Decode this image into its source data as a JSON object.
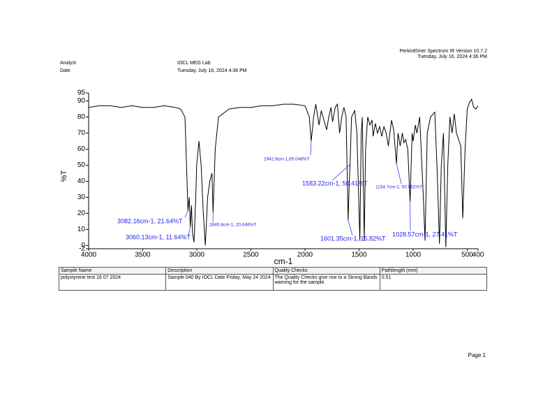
{
  "header": {
    "software": "PerkinElmer Spectrum IR Version 10.7.2",
    "printed": "Tuesday, July 16, 2024 4:36 PM",
    "fields": [
      {
        "label": "Analyst",
        "value": "IOCL MEG Lab"
      },
      {
        "label": "Date",
        "value": "Tuesday, July 16, 2024 4:36 PM"
      }
    ]
  },
  "chart_data": {
    "type": "line",
    "x_label": "cm-1",
    "y_label": "%T",
    "color": "#000000",
    "annotation_color": "#2222ee",
    "xlim": [
      4000,
      400
    ],
    "ylim": [
      -2,
      95
    ],
    "xticks": [
      4000,
      3500,
      3000,
      2500,
      2000,
      1500,
      1000,
      500,
      400
    ],
    "yticks": [
      -2,
      0,
      10,
      20,
      30,
      40,
      50,
      60,
      70,
      80,
      90,
      95
    ],
    "x": [
      4000,
      3900,
      3800,
      3700,
      3600,
      3500,
      3400,
      3300,
      3200,
      3150,
      3110,
      3100,
      3090,
      3082.16,
      3070,
      3060.13,
      3050,
      3040,
      3026,
      3010,
      3001,
      2980,
      2960,
      2940,
      2921,
      2900,
      2880,
      2860,
      2849.8,
      2830,
      2800,
      2700,
      2600,
      2500,
      2400,
      2300,
      2200,
      2100,
      2000,
      1960,
      1942.8,
      1920,
      1900,
      1870,
      1850,
      1800,
      1780,
      1760,
      1745,
      1720,
      1700,
      1680,
      1660,
      1640,
      1620,
      1601.35,
      1590,
      1583.22,
      1570,
      1540,
      1520,
      1493,
      1480,
      1470,
      1452,
      1440,
      1420,
      1400,
      1380,
      1370,
      1350,
      1330,
      1310,
      1290,
      1270,
      1250,
      1230,
      1200,
      1180,
      1154.7,
      1140,
      1120,
      1100,
      1085,
      1070,
      1050,
      1028.57,
      1010,
      1000,
      980,
      965,
      940,
      906,
      890,
      870,
      840,
      800,
      780,
      757,
      740,
      720,
      698,
      680,
      660,
      640,
      620,
      600,
      560,
      541,
      520,
      500,
      480,
      460,
      440,
      420,
      400
    ],
    "values": [
      86,
      87,
      87,
      86,
      87,
      86,
      86,
      87,
      86,
      85,
      80,
      60,
      40,
      21.64,
      30,
      11.64,
      25,
      8,
      2,
      30,
      50,
      65,
      50,
      20,
      0,
      30,
      40,
      45,
      20.646,
      60,
      80,
      85,
      86,
      86,
      87,
      87,
      88,
      88,
      87,
      80,
      65.048,
      80,
      88,
      75,
      84,
      72,
      80,
      86,
      77,
      86,
      88,
      70,
      80,
      86,
      80,
      15.82,
      40,
      50.41,
      80,
      84,
      70,
      3,
      70,
      80,
      3,
      60,
      80,
      75,
      78,
      68,
      76,
      70,
      74,
      68,
      74,
      70,
      62,
      78,
      72,
      50.962,
      70,
      62,
      70,
      64,
      66,
      60,
      27.41,
      70,
      65,
      75,
      70,
      80,
      30,
      3,
      70,
      80,
      83,
      50,
      1,
      50,
      70,
      -1,
      50,
      80,
      70,
      82,
      70,
      62,
      17,
      60,
      85,
      89,
      91,
      86,
      85,
      87
    ],
    "annotations": [
      {
        "label": "3082.16cm-1, 21.64%T",
        "x": 3082.16,
        "y": 21.64
      },
      {
        "label": "3060.13cm-1, 11.64%T",
        "x": 3060.13,
        "y": 11.64
      },
      {
        "label": "2849.8cm-1, 20.646%T",
        "x": 2849.8,
        "y": 20.646
      },
      {
        "label": "1942.8cm-1,65.048%T",
        "x": 1942.8,
        "y": 65.048
      },
      {
        "label": "1583.22cm-1, 50.41%T",
        "x": 1583.22,
        "y": 50.41
      },
      {
        "label": "1601.35cm-1, 15.82%T",
        "x": 1601.35,
        "y": 15.82
      },
      {
        "label": "1154.7cm-1, 50.962%T",
        "x": 1154.7,
        "y": 50.962
      },
      {
        "label": "1028.57cm-1, 27.41%T",
        "x": 1028.57,
        "y": 27.41
      }
    ]
  },
  "table": {
    "columns": [
      "Sample Name",
      "Description",
      "Quality Checks",
      "Pathlength (mm)"
    ],
    "rows": [
      [
        "polystyrene test 16 07 2024",
        "Sample 040 By IOCL Date Friday, May 24 2024",
        "The Quality Checks give rise to a Strong Bands warning for the sample.",
        "0.51"
      ]
    ]
  },
  "footer": {
    "page": "Page 1"
  }
}
